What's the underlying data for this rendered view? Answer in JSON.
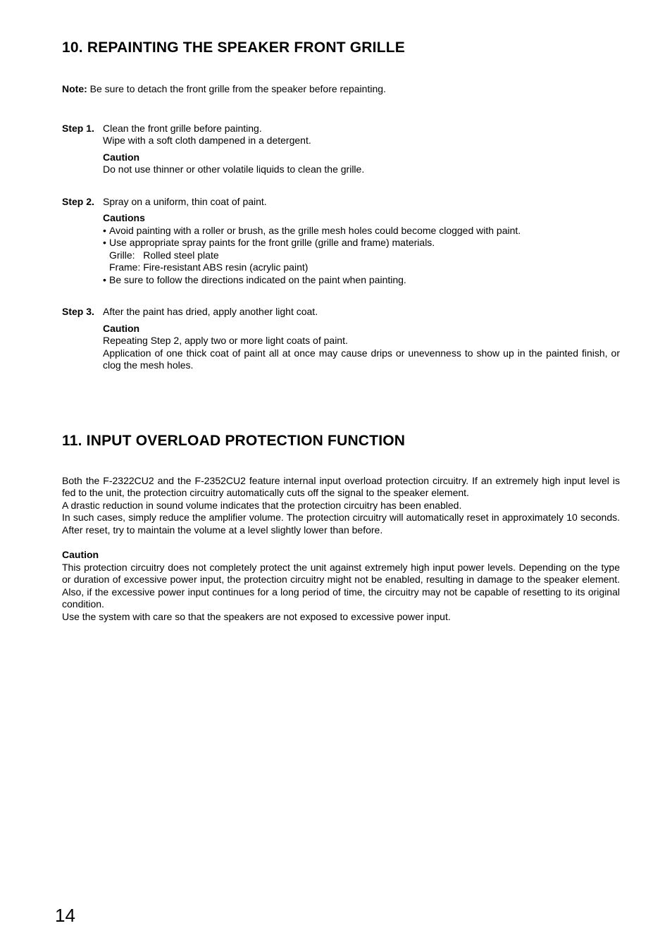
{
  "section10": {
    "heading": "10. REPAINTING THE SPEAKER FRONT GRILLE",
    "note_label": "Note:",
    "note_text": " Be sure to detach the front grille from the speaker before repainting.",
    "steps": [
      {
        "label": "Step 1.",
        "lines": [
          "Clean the front grille before painting.",
          "Wipe with a soft cloth dampened in a detergent."
        ],
        "caution_title": "Caution",
        "caution_lines": [
          "Do not use thinner or other volatile liquids to clean the grille."
        ]
      },
      {
        "label": "Step 2.",
        "lines": [
          "Spray on a uniform, thin coat of paint."
        ],
        "caution_title": "Cautions",
        "bullets": [
          {
            "text": "Avoid painting with a roller or brush, as the grille mesh holes could become clogged with paint."
          },
          {
            "text": "Use appropriate spray paints for the front grille (grille and frame) materials.",
            "sub": [
              "Grille:   Rolled steel plate",
              "Frame: Fire-resistant ABS resin (acrylic paint)"
            ]
          },
          {
            "text": "Be sure to follow the directions indicated on the paint when painting."
          }
        ]
      },
      {
        "label": "Step 3.",
        "lines": [
          "After the paint has dried, apply another light coat."
        ],
        "caution_title": "Caution",
        "caution_lines": [
          "Repeating Step 2, apply two or more light coats of paint.",
          "Application of one thick coat of paint all at once may cause drips or unevenness to show up in the painted finish, or clog the mesh holes."
        ]
      }
    ]
  },
  "section11": {
    "heading": "11. INPUT OVERLOAD PROTECTION FUNCTION",
    "para1": "Both the F-2322CU2 and the F-2352CU2 feature internal input overload protection circuitry. If an extremely high input level is fed to the unit, the protection circuitry automatically cuts off the signal to the speaker element.",
    "para2": "A drastic reduction in sound volume indicates that the protection circuitry has been enabled.",
    "para3": "In such cases, simply reduce the amplifier volume. The protection circuitry will automatically reset in approximately 10 seconds. After reset, try to maintain the volume at a level slightly lower than before.",
    "caution_title": "Caution",
    "caution_para1": "This protection circuitry does not completely protect the unit against extremely high input power levels. Depending on the type or duration of excessive power input, the protection circuitry might not be enabled, resulting in damage to the speaker element. Also, if the excessive power input continues for a long period of time, the circuitry may not be capable of resetting to its original condition.",
    "caution_para2": "Use the system with care so that the speakers are not exposed to excessive power input."
  },
  "page_number": "14"
}
